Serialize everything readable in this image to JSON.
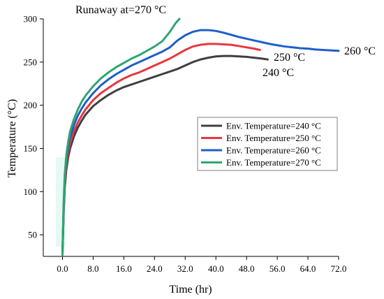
{
  "chart_data": {
    "type": "line",
    "title": "",
    "xlabel": "Time (hr)",
    "ylabel": "Temperature (°C)",
    "xlim": [
      -5.0,
      72.0
    ],
    "ylim": [
      25,
      300
    ],
    "x_ticks": [
      0,
      8,
      16,
      24,
      32,
      40,
      48,
      56,
      64,
      72
    ],
    "x_tick_labels": [
      "0.0",
      "8.0",
      "16.0",
      "24.0",
      "32.0",
      "40.0",
      "48.0",
      "56.0",
      "64.0",
      "72.0"
    ],
    "y_ticks": [
      50,
      100,
      150,
      200,
      250,
      300
    ],
    "y_tick_labels": [
      "50",
      "100",
      "150",
      "200",
      "250",
      "300"
    ],
    "grid": false,
    "legend_position": "center-right",
    "series": [
      {
        "name": "Env. Temperature=240 °C",
        "color": "#3f3f3f",
        "x": [
          0,
          0.3,
          0.6,
          1.0,
          1.5,
          2,
          3,
          4,
          5,
          6,
          8,
          10,
          12,
          14,
          16,
          18,
          20,
          22,
          24,
          26,
          28,
          30,
          32,
          34,
          36,
          38,
          40,
          42,
          44,
          46,
          48,
          50,
          52,
          53.5
        ],
        "y": [
          27,
          75,
          105,
          125,
          140,
          150,
          164,
          174,
          182,
          189,
          199,
          206,
          212,
          217,
          221,
          224,
          227,
          230,
          233,
          236,
          239,
          242,
          246,
          250,
          253,
          255,
          256.5,
          257,
          257,
          256.5,
          256,
          255,
          254,
          253
        ]
      },
      {
        "name": "Env. Temperature=250 °C",
        "color": "#e8363d",
        "x": [
          0,
          0.3,
          0.6,
          1.0,
          1.5,
          2,
          3,
          4,
          5,
          6,
          8,
          10,
          12,
          14,
          16,
          18,
          20,
          22,
          24,
          26,
          28,
          30,
          32,
          34,
          36,
          38,
          40,
          42,
          44,
          46,
          48,
          50,
          51.5
        ],
        "y": [
          27,
          78,
          110,
          130,
          146,
          156,
          170,
          180,
          188,
          195,
          206,
          214,
          220,
          226,
          231,
          235,
          238,
          242,
          246,
          250,
          254,
          259,
          264,
          268,
          270,
          271,
          271,
          270.5,
          270,
          268.5,
          267,
          265.5,
          264
        ]
      },
      {
        "name": "Env. Temperature=260 °C",
        "color": "#1f5ec9",
        "x": [
          0,
          0.3,
          0.6,
          1.0,
          1.5,
          2,
          3,
          4,
          5,
          6,
          8,
          10,
          12,
          14,
          16,
          18,
          20,
          22,
          24,
          26,
          28,
          30,
          32,
          34,
          36,
          38,
          40,
          42,
          44,
          46,
          48,
          50,
          52,
          54,
          56,
          58,
          60,
          62,
          64,
          66,
          68,
          70,
          72
        ],
        "y": [
          27,
          82,
          115,
          136,
          152,
          163,
          177,
          188,
          196,
          203,
          214,
          223,
          230,
          236,
          241,
          246,
          250,
          254,
          258,
          262,
          267,
          275,
          281,
          285,
          287,
          287,
          286,
          284,
          281.5,
          279,
          277,
          275,
          273,
          271,
          269.5,
          268,
          267,
          266,
          265.5,
          264.5,
          264,
          263.5,
          263
        ]
      },
      {
        "name": "Env. Temperature=270 °C",
        "color": "#2ea66f",
        "x": [
          0,
          0.3,
          0.6,
          1.0,
          1.5,
          2,
          3,
          4,
          5,
          6,
          8,
          10,
          12,
          14,
          16,
          18,
          20,
          22,
          24,
          26,
          28,
          29.5,
          30.5
        ],
        "y": [
          27,
          86,
          120,
          142,
          158,
          170,
          184,
          195,
          204,
          211,
          222,
          231,
          238,
          244,
          249,
          254,
          258,
          263,
          268,
          274,
          285,
          295,
          300
        ]
      }
    ],
    "annotations": [
      {
        "text": "Runaway at=270 °C"
      },
      {
        "text": "260 °C"
      },
      {
        "text": "250 °C"
      },
      {
        "text": "240 °C"
      }
    ]
  }
}
